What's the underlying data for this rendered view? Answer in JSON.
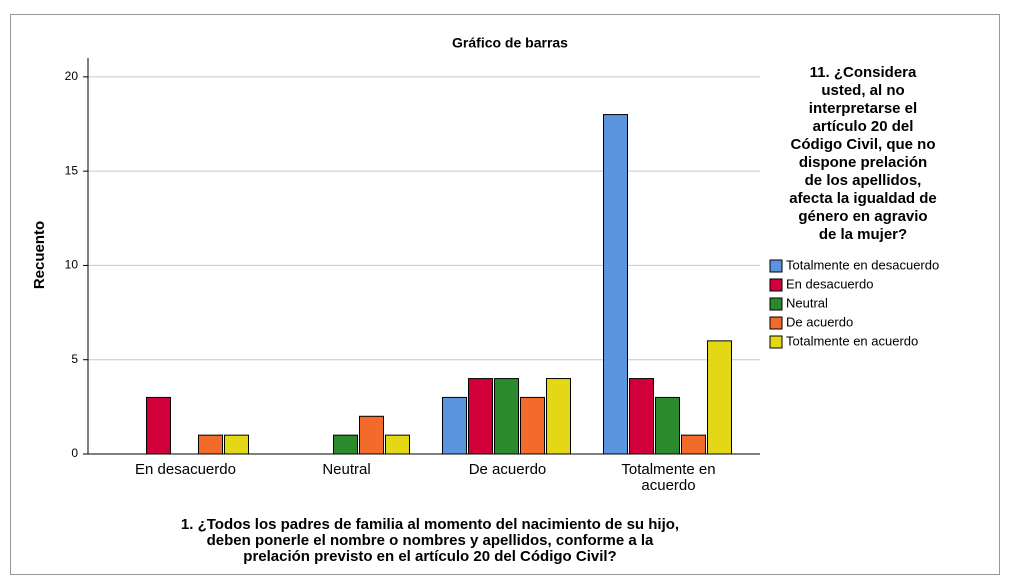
{
  "chart_data": {
    "type": "bar",
    "title": "Gráfico de barras",
    "y_label": "Recuento",
    "x_label": "1. ¿Todos los padres de familia al momento del nacimiento de su hijo,\ndeben ponerle el nombre o nombres y apellidos, conforme a la\nprelación previsto en el artículo 20 del Código Civil?",
    "legend_title": "11. ¿Considera\nusted, al no\ninterpretarse el\nartículo 20 del\nCódigo Civil, que no\ndispone prelación\nde los apellidos,\nafecta la igualdad de\ngénero en agravio\nde la mujer?",
    "categories": [
      "En desacuerdo",
      "Neutral",
      "De acuerdo",
      "Totalmente en acuerdo"
    ],
    "series": [
      {
        "name": "Totalmente en desacuerdo",
        "color": "#5b95e0",
        "values": [
          0,
          0,
          3,
          18
        ]
      },
      {
        "name": "En desacuerdo",
        "color": "#d2003a",
        "values": [
          3,
          0,
          4,
          4
        ]
      },
      {
        "name": "Neutral",
        "color": "#2b8a2b",
        "values": [
          0,
          1,
          4,
          3
        ]
      },
      {
        "name": "De acuerdo",
        "color": "#f26b2b",
        "values": [
          1,
          2,
          3,
          1
        ]
      },
      {
        "name": "Totalmente en acuerdo",
        "color": "#e4d816",
        "values": [
          1,
          1,
          4,
          6
        ]
      }
    ],
    "ylim": [
      0,
      21
    ],
    "yticks": [
      0,
      5,
      10,
      15,
      20
    ],
    "grid": true,
    "legend": "right"
  }
}
